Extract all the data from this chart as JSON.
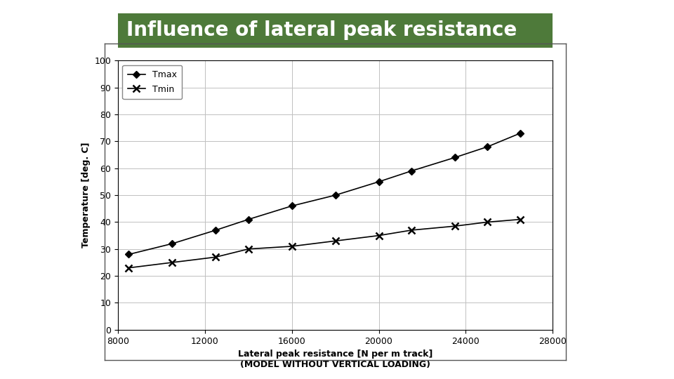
{
  "title": "Influence of lateral peak resistance",
  "title_bg_color": "#4e7a3a",
  "title_text_color": "#ffffff",
  "title_fontsize": 20,
  "xlabel_line1": "Lateral peak resistance [N per m track]",
  "xlabel_line2": "(MODEL WITHOUT VERTICAL LOADING)",
  "ylabel": "Temperature [deg. C]",
  "xlim": [
    8000,
    28000
  ],
  "ylim": [
    0,
    100
  ],
  "xticks": [
    8000,
    12000,
    16000,
    20000,
    24000,
    28000
  ],
  "yticks": [
    0,
    10,
    20,
    30,
    40,
    50,
    60,
    70,
    80,
    90,
    100
  ],
  "x_data": [
    8500,
    10500,
    12500,
    14000,
    16000,
    18000,
    20000,
    21500,
    23500,
    25000,
    26500
  ],
  "tmax_data": [
    28,
    32,
    37,
    41,
    46,
    50,
    55,
    59,
    64,
    68,
    73
  ],
  "tmin_data": [
    23,
    25,
    27,
    30,
    31,
    33,
    35,
    37,
    38.5,
    40,
    41
  ],
  "tmax_color": "#000000",
  "tmin_color": "#000000",
  "grid_color": "#c0c0c0",
  "bg_color": "#ffffff",
  "plot_bg_color": "#ffffff",
  "label_tmax": "Tmax",
  "label_tmin": "Tmin",
  "xlabel_fontsize": 9,
  "ylabel_fontsize": 9,
  "tick_fontsize": 9,
  "legend_fontsize": 9,
  "outer_border_color": "#555555"
}
